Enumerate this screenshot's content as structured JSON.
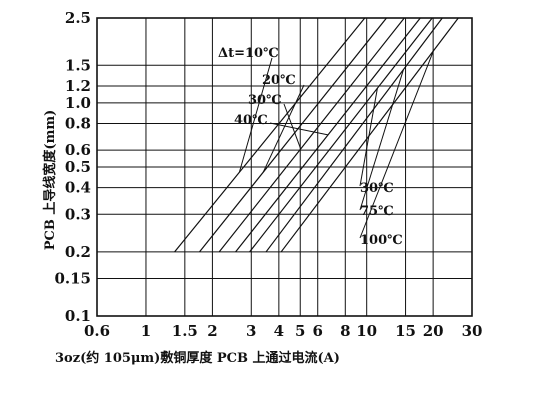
{
  "chart_data": {
    "type": "line",
    "xscale": "log",
    "yscale": "log",
    "xlim": [
      0.6,
      30
    ],
    "ylim": [
      0.1,
      2.5
    ],
    "grid": true,
    "xlabel": "3oz(约 105μm)敷铜厚度 PCB 上通过电流(A)",
    "ylabel": "PCB 上导线宽度(mm)",
    "xticks": [
      {
        "v": 0.6,
        "label": "0.6"
      },
      {
        "v": 1,
        "label": "1"
      },
      {
        "v": 1.5,
        "label": "1.5"
      },
      {
        "v": 2,
        "label": "2"
      },
      {
        "v": 3,
        "label": "3"
      },
      {
        "v": 4,
        "label": "4"
      },
      {
        "v": 5,
        "label": "5"
      },
      {
        "v": 6,
        "label": "6"
      },
      {
        "v": 8,
        "label": "8"
      },
      {
        "v": 10,
        "label": "10"
      },
      {
        "v": 15,
        "label": "15"
      },
      {
        "v": 20,
        "label": "20"
      },
      {
        "v": 30,
        "label": "30"
      }
    ],
    "yticks": [
      {
        "v": 0.1,
        "label": "0.1"
      },
      {
        "v": 0.15,
        "label": "0.15"
      },
      {
        "v": 0.2,
        "label": "0.2"
      },
      {
        "v": 0.3,
        "label": "0.3"
      },
      {
        "v": 0.4,
        "label": "0.4"
      },
      {
        "v": 0.5,
        "label": "0.5"
      },
      {
        "v": 0.6,
        "label": "0.6"
      },
      {
        "v": 0.8,
        "label": "0.8"
      },
      {
        "v": 1.0,
        "label": "1.0"
      },
      {
        "v": 1.2,
        "label": "1.2"
      },
      {
        "v": 1.5,
        "label": "1.5"
      },
      {
        "v": 2.5,
        "label": "2.5"
      }
    ],
    "series": [
      {
        "name": "Δt=10℃",
        "points": [
          [
            1.35,
            0.2
          ],
          [
            9.8,
            2.5
          ]
        ]
      },
      {
        "name": "20℃",
        "points": [
          [
            1.75,
            0.2
          ],
          [
            12.3,
            2.5
          ]
        ]
      },
      {
        "name": "30℃",
        "points": [
          [
            2.15,
            0.2
          ],
          [
            14.8,
            2.5
          ]
        ]
      },
      {
        "name": "40℃",
        "points": [
          [
            2.55,
            0.2
          ],
          [
            17.5,
            2.5
          ]
        ]
      },
      {
        "name": "30℃",
        "points": [
          [
            2.95,
            0.2
          ],
          [
            19.8,
            2.5
          ]
        ]
      },
      {
        "name": "75℃",
        "points": [
          [
            3.5,
            0.2
          ],
          [
            22.0,
            2.5
          ]
        ]
      },
      {
        "name": "100℃",
        "points": [
          [
            4.1,
            0.2
          ],
          [
            26.0,
            2.5
          ]
        ]
      }
    ],
    "colors": {
      "line": "#111111",
      "grid": "#111111",
      "background": "#ffffff"
    }
  }
}
